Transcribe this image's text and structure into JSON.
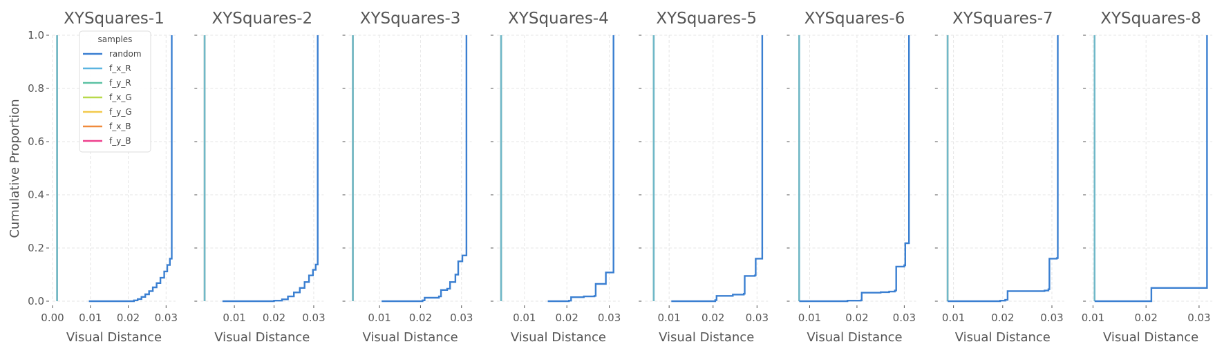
{
  "chart_data": {
    "type": "line",
    "ylabel": "Cumulative Proportion",
    "xlabel": "Visual Distance",
    "ylim": [
      0.0,
      1.0
    ],
    "yticks": [
      0.0,
      0.2,
      0.4,
      0.6,
      0.8,
      1.0
    ],
    "grid": true,
    "legend": {
      "title": "samples",
      "placement": "top-left of first panel",
      "entries": [
        {
          "name": "random",
          "color": "#3a7fd1"
        },
        {
          "name": "f_x_R",
          "color": "#5ab4e0"
        },
        {
          "name": "f_y_R",
          "color": "#5cc2a4"
        },
        {
          "name": "f_x_G",
          "color": "#b8d94a"
        },
        {
          "name": "f_y_G",
          "color": "#f2c94c"
        },
        {
          "name": "f_x_B",
          "color": "#f08a3c"
        },
        {
          "name": "f_y_B",
          "color": "#ee3f8c"
        }
      ]
    },
    "panels": [
      {
        "title": "XYSquares-1",
        "xlim": [
          0.0,
          0.0325
        ],
        "xticks": [
          0.0,
          0.01,
          0.02,
          0.03
        ],
        "xticklabels": [
          "0.00",
          "0.01",
          "0.02",
          "0.03"
        ],
        "feature_x": 0.0012,
        "random_curve": [
          [
            0.0096,
            0.0
          ],
          [
            0.0215,
            0.003
          ],
          [
            0.0225,
            0.008
          ],
          [
            0.0235,
            0.016
          ],
          [
            0.0245,
            0.026
          ],
          [
            0.0255,
            0.038
          ],
          [
            0.0265,
            0.052
          ],
          [
            0.0275,
            0.068
          ],
          [
            0.0285,
            0.088
          ],
          [
            0.0295,
            0.112
          ],
          [
            0.0303,
            0.136
          ],
          [
            0.031,
            0.16
          ],
          [
            0.0315,
            0.18
          ],
          [
            0.0315,
            1.0
          ]
        ]
      },
      {
        "title": "XYSquares-2",
        "xlim": [
          0.0015,
          0.0325
        ],
        "xticks": [
          0.01,
          0.02,
          0.03
        ],
        "xticklabels": [
          "0.01",
          "0.02",
          "0.03"
        ],
        "feature_x": 0.0025,
        "random_curve": [
          [
            0.007,
            0.0
          ],
          [
            0.02,
            0.002
          ],
          [
            0.022,
            0.007
          ],
          [
            0.0235,
            0.018
          ],
          [
            0.025,
            0.033
          ],
          [
            0.0265,
            0.05
          ],
          [
            0.0277,
            0.072
          ],
          [
            0.0288,
            0.097
          ],
          [
            0.0298,
            0.118
          ],
          [
            0.0305,
            0.138
          ],
          [
            0.031,
            0.15
          ],
          [
            0.031,
            1.0
          ]
        ]
      },
      {
        "title": "XYSquares-3",
        "xlim": [
          0.0025,
          0.0325
        ],
        "xticks": [
          0.01,
          0.02,
          0.03
        ],
        "xticklabels": [
          "0.01",
          "0.02",
          "0.03"
        ],
        "feature_x": 0.0035,
        "random_curve": [
          [
            0.0105,
            0.0
          ],
          [
            0.0205,
            0.003
          ],
          [
            0.021,
            0.013
          ],
          [
            0.0245,
            0.018
          ],
          [
            0.025,
            0.042
          ],
          [
            0.0265,
            0.047
          ],
          [
            0.0272,
            0.072
          ],
          [
            0.0285,
            0.1
          ],
          [
            0.0292,
            0.15
          ],
          [
            0.0302,
            0.172
          ],
          [
            0.0312,
            0.172
          ],
          [
            0.0312,
            1.0
          ]
        ]
      },
      {
        "title": "XYSquares-4",
        "xlim": [
          0.0035,
          0.0325
        ],
        "xticks": [
          0.01,
          0.02,
          0.03
        ],
        "xticklabels": [
          "0.01",
          "0.02",
          "0.03"
        ],
        "feature_x": 0.0045,
        "random_curve": [
          [
            0.0155,
            0.0
          ],
          [
            0.0205,
            0.002
          ],
          [
            0.021,
            0.015
          ],
          [
            0.024,
            0.018
          ],
          [
            0.0265,
            0.02
          ],
          [
            0.0268,
            0.065
          ],
          [
            0.029,
            0.065
          ],
          [
            0.0292,
            0.108
          ],
          [
            0.031,
            0.108
          ],
          [
            0.031,
            1.0
          ]
        ]
      },
      {
        "title": "XYSquares-5",
        "xlim": [
          0.0045,
          0.0325
        ],
        "xticks": [
          0.01,
          0.02,
          0.03
        ],
        "xticklabels": [
          "0.01",
          "0.02",
          "0.03"
        ],
        "feature_x": 0.0065,
        "random_curve": [
          [
            0.0105,
            0.0
          ],
          [
            0.0205,
            0.004
          ],
          [
            0.0208,
            0.02
          ],
          [
            0.0245,
            0.025
          ],
          [
            0.027,
            0.028
          ],
          [
            0.0272,
            0.095
          ],
          [
            0.0295,
            0.097
          ],
          [
            0.0297,
            0.16
          ],
          [
            0.0312,
            0.16
          ],
          [
            0.0312,
            1.0
          ]
        ]
      },
      {
        "title": "XYSquares-6",
        "xlim": [
          0.0065,
          0.0325
        ],
        "xticks": [
          0.01,
          0.02,
          0.03
        ],
        "xticklabels": [
          "0.01",
          "0.02",
          "0.03"
        ],
        "feature_x": 0.0078,
        "random_curve": [
          [
            0.0078,
            0.0
          ],
          [
            0.018,
            0.002
          ],
          [
            0.0208,
            0.003
          ],
          [
            0.021,
            0.032
          ],
          [
            0.025,
            0.034
          ],
          [
            0.0268,
            0.036
          ],
          [
            0.028,
            0.04
          ],
          [
            0.0283,
            0.13
          ],
          [
            0.03,
            0.135
          ],
          [
            0.0302,
            0.218
          ],
          [
            0.031,
            0.218
          ],
          [
            0.031,
            1.0
          ]
        ]
      },
      {
        "title": "XYSquares-7",
        "xlim": [
          0.0075,
          0.0325
        ],
        "xticks": [
          0.01,
          0.02,
          0.03
        ],
        "xticklabels": [
          "0.01",
          "0.02",
          "0.03"
        ],
        "feature_x": 0.0088,
        "random_curve": [
          [
            0.0088,
            0.0
          ],
          [
            0.0195,
            0.002
          ],
          [
            0.0205,
            0.005
          ],
          [
            0.021,
            0.038
          ],
          [
            0.025,
            0.038
          ],
          [
            0.0285,
            0.04
          ],
          [
            0.0293,
            0.045
          ],
          [
            0.0295,
            0.16
          ],
          [
            0.031,
            0.162
          ],
          [
            0.0312,
            0.26
          ],
          [
            0.0312,
            1.0
          ]
        ]
      },
      {
        "title": "XYSquares-8",
        "xlim": [
          0.0093,
          0.0325
        ],
        "xticks": [
          0.01,
          0.02,
          0.03
        ],
        "xticklabels": [
          "0.01",
          "0.02",
          "0.03"
        ],
        "feature_x": 0.0103,
        "random_curve": [
          [
            0.0103,
            0.0
          ],
          [
            0.021,
            0.002
          ],
          [
            0.021,
            0.05
          ],
          [
            0.0315,
            0.05
          ],
          [
            0.0315,
            1.0
          ]
        ]
      }
    ]
  }
}
